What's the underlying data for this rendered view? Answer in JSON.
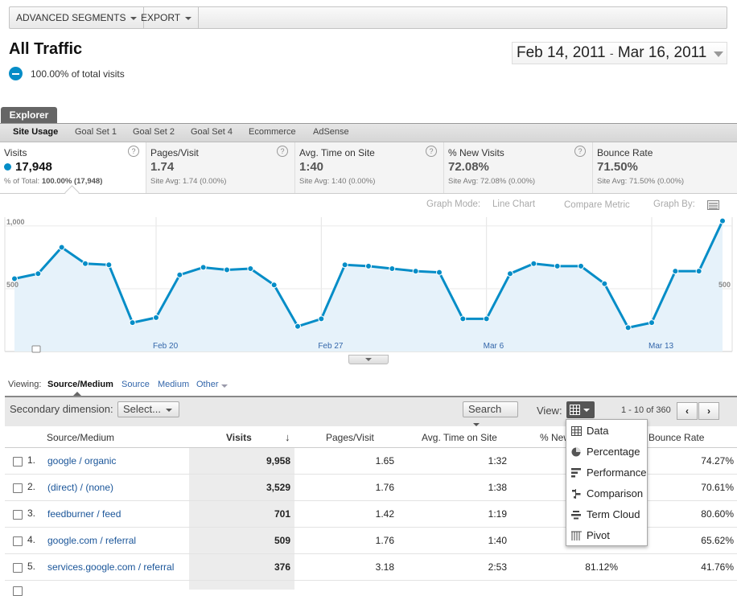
{
  "toolbar": {
    "segments_label": "ADVANCED SEGMENTS",
    "export_label": "EXPORT"
  },
  "header": {
    "title": "All Traffic",
    "segment_text": "100.00% of total visits",
    "date_start": "Feb 14, 2011",
    "date_sep": "-",
    "date_end": "Mar 16, 2011"
  },
  "explorer": {
    "tab_label": "Explorer",
    "subtabs": [
      "Site Usage",
      "Goal Set 1",
      "Goal Set 2",
      "Goal Set 4",
      "Ecommerce",
      "AdSense"
    ]
  },
  "metrics": [
    {
      "label": "Visits",
      "value": "17,948",
      "sub_prefix": "% of Total: ",
      "sub_bold": "100.00% (17,948)"
    },
    {
      "label": "Pages/Visit",
      "value": "1.74",
      "sub_prefix": "Site Avg: 1.74 (0.00%)",
      "sub_bold": ""
    },
    {
      "label": "Avg. Time on Site",
      "value": "1:40",
      "sub_prefix": "Site Avg: 1:40 (0.00%)",
      "sub_bold": ""
    },
    {
      "label": "% New Visits",
      "value": "72.08%",
      "sub_prefix": "Site Avg: 72.08% (0.00%)",
      "sub_bold": ""
    },
    {
      "label": "Bounce Rate",
      "value": "71.50%",
      "sub_prefix": "Site Avg: 71.50% (0.00%)",
      "sub_bold": ""
    }
  ],
  "help_glyph": "?",
  "graph_tools": {
    "mode_label": "Graph Mode:",
    "mode_value": "Line Chart",
    "compare": "Compare Metric",
    "graph_by": "Graph By:"
  },
  "chart_data": {
    "type": "area",
    "series": [
      {
        "name": "Visits",
        "values": [
          580,
          620,
          830,
          700,
          690,
          230,
          270,
          610,
          670,
          650,
          660,
          530,
          200,
          260,
          690,
          680,
          660,
          640,
          630,
          260,
          260,
          620,
          700,
          680,
          680,
          540,
          190,
          230,
          640,
          640,
          1040
        ]
      }
    ],
    "x_labels": [
      "Feb 20",
      "Feb 27",
      "Mar 6",
      "Mar 13"
    ],
    "y_ticks": [
      "1,000",
      "500"
    ],
    "ylim": [
      0,
      1070
    ],
    "color": "#058dc7",
    "fill": "#e6f2fa"
  },
  "viewing": {
    "label": "Viewing:",
    "options": [
      "Source/Medium",
      "Source",
      "Medium",
      "Other"
    ]
  },
  "controls": {
    "secondary_label": "Secondary dimension:",
    "select_label": "Select...",
    "search_label": "Search",
    "view_label": "View:",
    "pagination": "1 - 10 of 360",
    "prev": "‹",
    "next": "›"
  },
  "table": {
    "headers": [
      "Source/Medium",
      "Visits",
      "Pages/Visit",
      "Avg. Time on Site",
      "% New Visits",
      "Bounce Rate"
    ],
    "header_new_visits_visible": "% New",
    "sort_glyph": "↓",
    "rows": [
      {
        "num": "1.",
        "source": "google / organic",
        "visits": "9,958",
        "pages": "1.65",
        "time": "1:32",
        "new": "",
        "bounce": "74.27%"
      },
      {
        "num": "2.",
        "source": "(direct) / (none)",
        "visits": "3,529",
        "pages": "1.76",
        "time": "1:38",
        "new": "",
        "bounce": "70.61%"
      },
      {
        "num": "3.",
        "source": "feedburner / feed",
        "visits": "701",
        "pages": "1.42",
        "time": "1:19",
        "new": "",
        "bounce": "80.60%"
      },
      {
        "num": "4.",
        "source": "google.com / referral",
        "visits": "509",
        "pages": "1.76",
        "time": "1:40",
        "new": "",
        "bounce": "65.62%"
      },
      {
        "num": "5.",
        "source": "services.google.com / referral",
        "visits": "376",
        "pages": "3.18",
        "time": "2:53",
        "new": "81.12%",
        "bounce": "41.76%"
      }
    ]
  },
  "view_menu": {
    "items": [
      "Data",
      "Percentage",
      "Performance",
      "Comparison",
      "Term Cloud",
      "Pivot"
    ]
  }
}
